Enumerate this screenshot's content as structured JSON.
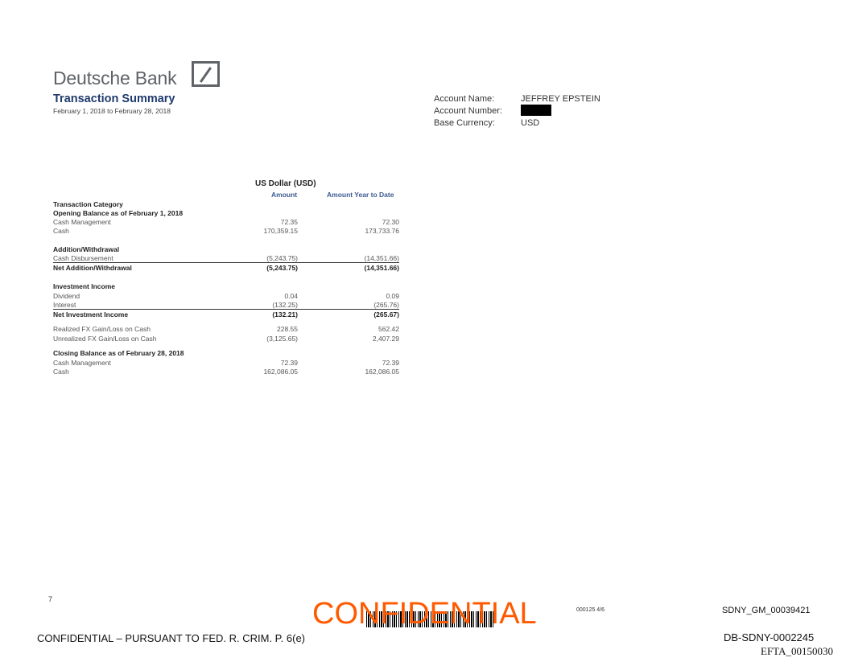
{
  "header": {
    "brand": "Deutsche Bank",
    "title": "Transaction Summary",
    "period": "February 1, 2018 to February 28, 2018"
  },
  "account": {
    "name_label": "Account Name:",
    "name_value": "JEFFREY EPSTEIN",
    "number_label": "Account Number:",
    "number_value": "[redacted]",
    "currency_label": "Base Currency:",
    "currency_value": "USD"
  },
  "table": {
    "currency_header": "US Dollar (USD)",
    "col_amount": "Amount",
    "col_ytd": "Amount Year to Date",
    "rows": [
      {
        "label": "Transaction Category",
        "bold": true
      },
      {
        "label": "Opening Balance as of February 1, 2018",
        "bold": true
      },
      {
        "label": "Cash Management",
        "amount": "72.35",
        "ytd": "72.30"
      },
      {
        "label": "Cash",
        "amount": "170,359.15",
        "ytd": "173,733.76"
      },
      {
        "label": "Addition/Withdrawal",
        "bold": true
      },
      {
        "label": "Cash Disbursement",
        "amount": "(5,243.75)",
        "ytd": "(14,351.66)"
      },
      {
        "label": "Net Addition/Withdrawal",
        "amount": "(5,243.75)",
        "ytd": "(14,351.66)",
        "bold": true,
        "rule": true
      },
      {
        "label": "Investment Income",
        "bold": true
      },
      {
        "label": "Dividend",
        "amount": "0.04",
        "ytd": "0.09"
      },
      {
        "label": "Interest",
        "amount": "(132.25)",
        "ytd": "(265.76)"
      },
      {
        "label": "Net Investment Income",
        "amount": "(132.21)",
        "ytd": "(265.67)",
        "bold": true,
        "rule": true
      },
      {
        "label": "Realized FX Gain/Loss on Cash",
        "amount": "228.55",
        "ytd": "562.42"
      },
      {
        "label": "Unrealized FX Gain/Loss on Cash",
        "amount": "(3,125.65)",
        "ytd": "2,407.29"
      },
      {
        "label": "Closing Balance as of February 28, 2018",
        "bold": true
      },
      {
        "label": "Cash Management",
        "amount": "72.39",
        "ytd": "72.39"
      },
      {
        "label": "Cash",
        "amount": "162,086.05",
        "ytd": "162,086.05"
      }
    ]
  },
  "footer": {
    "page_number": "7",
    "confidential_stamp": "CONFIDENTIAL",
    "doc_code": "000125 4/6",
    "sdny_id": "SDNY_GM_00039421",
    "pursuant": "CONFIDENTIAL – PURSUANT TO FED. R. CRIM. P. 6(e)",
    "db_sdny": "DB-SDNY-0002245",
    "efta": "EFTA_00150030"
  },
  "colors": {
    "brand_blue": "#1f3a6e",
    "stamp_orange": "#ff5a00"
  }
}
